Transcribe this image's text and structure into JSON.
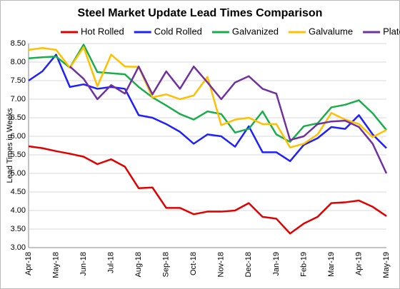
{
  "chart_data": {
    "type": "line",
    "title": "Steel Market Update Lead Times Comparison",
    "y_label": "Lead Times in Weeks",
    "categories": [
      "Apr-18",
      null,
      "May-18",
      null,
      "Jun-18",
      null,
      "Jul-18",
      null,
      "Aug-18",
      null,
      "Sep-18",
      null,
      "Oct-18",
      null,
      "Nov-18",
      null,
      "Dec-18",
      null,
      "Jan-19",
      null,
      "Feb-19",
      null,
      "Mar-19",
      null,
      "Apr-19",
      null,
      "May-19"
    ],
    "series": [
      {
        "name": "Hot Rolled",
        "color": "#e00000",
        "values": [
          5.73,
          5.68,
          5.6,
          5.53,
          5.45,
          5.25,
          5.38,
          5.18,
          4.6,
          4.62,
          4.07,
          4.07,
          3.9,
          3.97,
          3.97,
          4.0,
          4.2,
          3.83,
          3.78,
          3.38,
          3.65,
          3.83,
          4.2,
          4.22,
          4.27,
          4.1,
          3.85
        ]
      },
      {
        "name": "Cold Rolled",
        "color": "#1f1fff",
        "values": [
          7.5,
          7.75,
          8.2,
          7.33,
          7.4,
          7.28,
          7.33,
          7.28,
          6.57,
          6.5,
          6.33,
          6.12,
          5.8,
          6.05,
          6.0,
          5.72,
          6.27,
          5.57,
          5.57,
          5.33,
          5.77,
          5.95,
          6.25,
          6.2,
          6.57,
          6.05,
          5.68
        ]
      },
      {
        "name": "Galvanized",
        "color": "#1aae4b",
        "values": [
          8.1,
          8.13,
          8.15,
          7.85,
          8.47,
          7.73,
          7.7,
          7.67,
          7.33,
          7.05,
          6.83,
          6.6,
          6.45,
          6.67,
          6.6,
          6.1,
          6.2,
          6.67,
          6.05,
          5.85,
          6.27,
          6.35,
          6.78,
          6.85,
          6.97,
          6.62,
          6.17
        ]
      },
      {
        "name": "Galvalume",
        "color": "#ffc000",
        "values": [
          8.33,
          8.38,
          8.33,
          7.85,
          8.4,
          7.35,
          8.2,
          7.88,
          7.87,
          7.05,
          7.13,
          7.0,
          7.1,
          7.6,
          6.3,
          6.45,
          6.5,
          6.33,
          6.33,
          5.7,
          5.8,
          6.05,
          6.63,
          6.45,
          6.33,
          5.98,
          6.17
        ]
      },
      {
        "name": "Plate",
        "color": "#7030a0",
        "values": [
          null,
          null,
          null,
          7.88,
          7.55,
          7.0,
          7.38,
          7.15,
          7.88,
          7.13,
          7.75,
          7.28,
          7.88,
          7.45,
          7.0,
          7.45,
          7.62,
          7.28,
          7.15,
          5.9,
          6.0,
          6.33,
          6.4,
          6.42,
          6.25,
          5.8,
          5.0
        ]
      }
    ],
    "ylim": [
      3,
      8.5
    ],
    "yticks": [
      {
        "value": 3,
        "label": "3.00"
      },
      {
        "value": 3.5,
        "label": "3.50"
      },
      {
        "value": 4,
        "label": "4.00"
      },
      {
        "value": 4.5,
        "label": "4.50"
      },
      {
        "value": 5,
        "label": "5.00"
      },
      {
        "value": 5.5,
        "label": "5.50"
      },
      {
        "value": 6,
        "label": "6.00"
      },
      {
        "value": 6.5,
        "label": "6.50"
      },
      {
        "value": 7,
        "label": "7.00"
      },
      {
        "value": 7.5,
        "label": "7.50"
      },
      {
        "value": 8,
        "label": "8.00"
      },
      {
        "value": 8.5,
        "label": "8.50"
      }
    ],
    "grid": true,
    "legend": "top"
  }
}
